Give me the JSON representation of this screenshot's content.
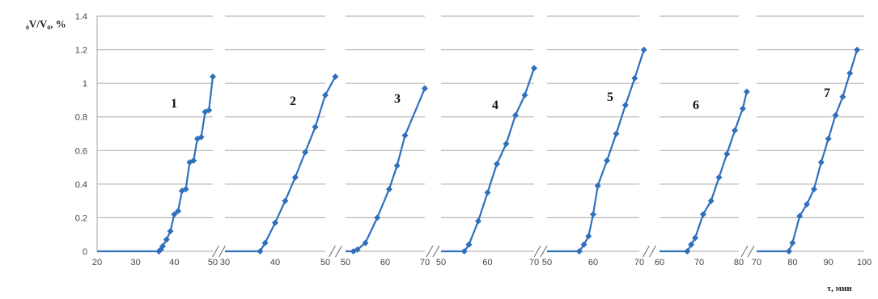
{
  "chart_data": {
    "type": "line",
    "title": "",
    "ylabel": "₀V/V₀, %",
    "xlabel": "τ, мин",
    "ylim": [
      0,
      1.4
    ],
    "yticks": [
      "0",
      "0.2",
      "0.4",
      "0.6",
      "0.8",
      "1",
      "1.2",
      "1.4"
    ],
    "grid": true,
    "color": "#2e6fbe",
    "panels": [
      {
        "label": "1",
        "xlim": [
          20,
          50
        ],
        "xticks": [
          20,
          30,
          40,
          50
        ],
        "points": [
          [
            20,
            0
          ],
          [
            36,
            0
          ],
          [
            36.5,
            0.01
          ],
          [
            37,
            0.03
          ],
          [
            38,
            0.07
          ],
          [
            39,
            0.12
          ],
          [
            40,
            0.22
          ],
          [
            41,
            0.24
          ],
          [
            42,
            0.36
          ],
          [
            43,
            0.37
          ],
          [
            44,
            0.53
          ],
          [
            45,
            0.54
          ],
          [
            46,
            0.67
          ],
          [
            47,
            0.68
          ],
          [
            48,
            0.83
          ],
          [
            49,
            0.84
          ],
          [
            50,
            1.04
          ]
        ]
      },
      {
        "label": "2",
        "xlim": [
          30,
          50
        ],
        "xticks": [
          30,
          40,
          50
        ],
        "points": [
          [
            30,
            0
          ],
          [
            37,
            0
          ],
          [
            38,
            0.05
          ],
          [
            40,
            0.17
          ],
          [
            42,
            0.3
          ],
          [
            44,
            0.44
          ],
          [
            46,
            0.59
          ],
          [
            48,
            0.74
          ],
          [
            50,
            0.93
          ],
          [
            52,
            1.04
          ]
        ]
      },
      {
        "label": "3",
        "xlim": [
          50,
          70
        ],
        "xticks": [
          50,
          60,
          70
        ],
        "points": [
          [
            50,
            0
          ],
          [
            52,
            0
          ],
          [
            53,
            0.01
          ],
          [
            55,
            0.05
          ],
          [
            58,
            0.2
          ],
          [
            61,
            0.37
          ],
          [
            63,
            0.51
          ],
          [
            65,
            0.69
          ],
          [
            70,
            0.97
          ]
        ]
      },
      {
        "label": "4",
        "xlim": [
          50,
          70
        ],
        "xticks": [
          50,
          60,
          70
        ],
        "points": [
          [
            50,
            0
          ],
          [
            55,
            0
          ],
          [
            56,
            0.04
          ],
          [
            58,
            0.18
          ],
          [
            60,
            0.35
          ],
          [
            62,
            0.52
          ],
          [
            64,
            0.64
          ],
          [
            66,
            0.81
          ],
          [
            68,
            0.93
          ],
          [
            70,
            1.09
          ]
        ]
      },
      {
        "label": "5",
        "xlim": [
          50,
          70
        ],
        "xticks": [
          50,
          60,
          70
        ],
        "points": [
          [
            50,
            0
          ],
          [
            57,
            0
          ],
          [
            58,
            0.04
          ],
          [
            59,
            0.09
          ],
          [
            60,
            0.22
          ],
          [
            61,
            0.39
          ],
          [
            63,
            0.54
          ],
          [
            65,
            0.7
          ],
          [
            67,
            0.87
          ],
          [
            69,
            1.03
          ],
          [
            71,
            1.2
          ]
        ]
      },
      {
        "label": "6",
        "xlim": [
          60,
          80
        ],
        "xticks": [
          60,
          70,
          80
        ],
        "points": [
          [
            60,
            0
          ],
          [
            67,
            0
          ],
          [
            68,
            0.04
          ],
          [
            69,
            0.08
          ],
          [
            71,
            0.22
          ],
          [
            73,
            0.3
          ],
          [
            75,
            0.44
          ],
          [
            77,
            0.58
          ],
          [
            79,
            0.72
          ],
          [
            81,
            0.85
          ],
          [
            82,
            0.95
          ]
        ]
      },
      {
        "label": "7",
        "xlim": [
          70,
          100
        ],
        "xticks": [
          70,
          80,
          90,
          100
        ],
        "points": [
          [
            70,
            0
          ],
          [
            79,
            0
          ],
          [
            80,
            0.05
          ],
          [
            82,
            0.21
          ],
          [
            84,
            0.28
          ],
          [
            86,
            0.37
          ],
          [
            88,
            0.53
          ],
          [
            90,
            0.67
          ],
          [
            92,
            0.81
          ],
          [
            94,
            0.92
          ],
          [
            96,
            1.06
          ],
          [
            98,
            1.2
          ]
        ]
      }
    ]
  }
}
